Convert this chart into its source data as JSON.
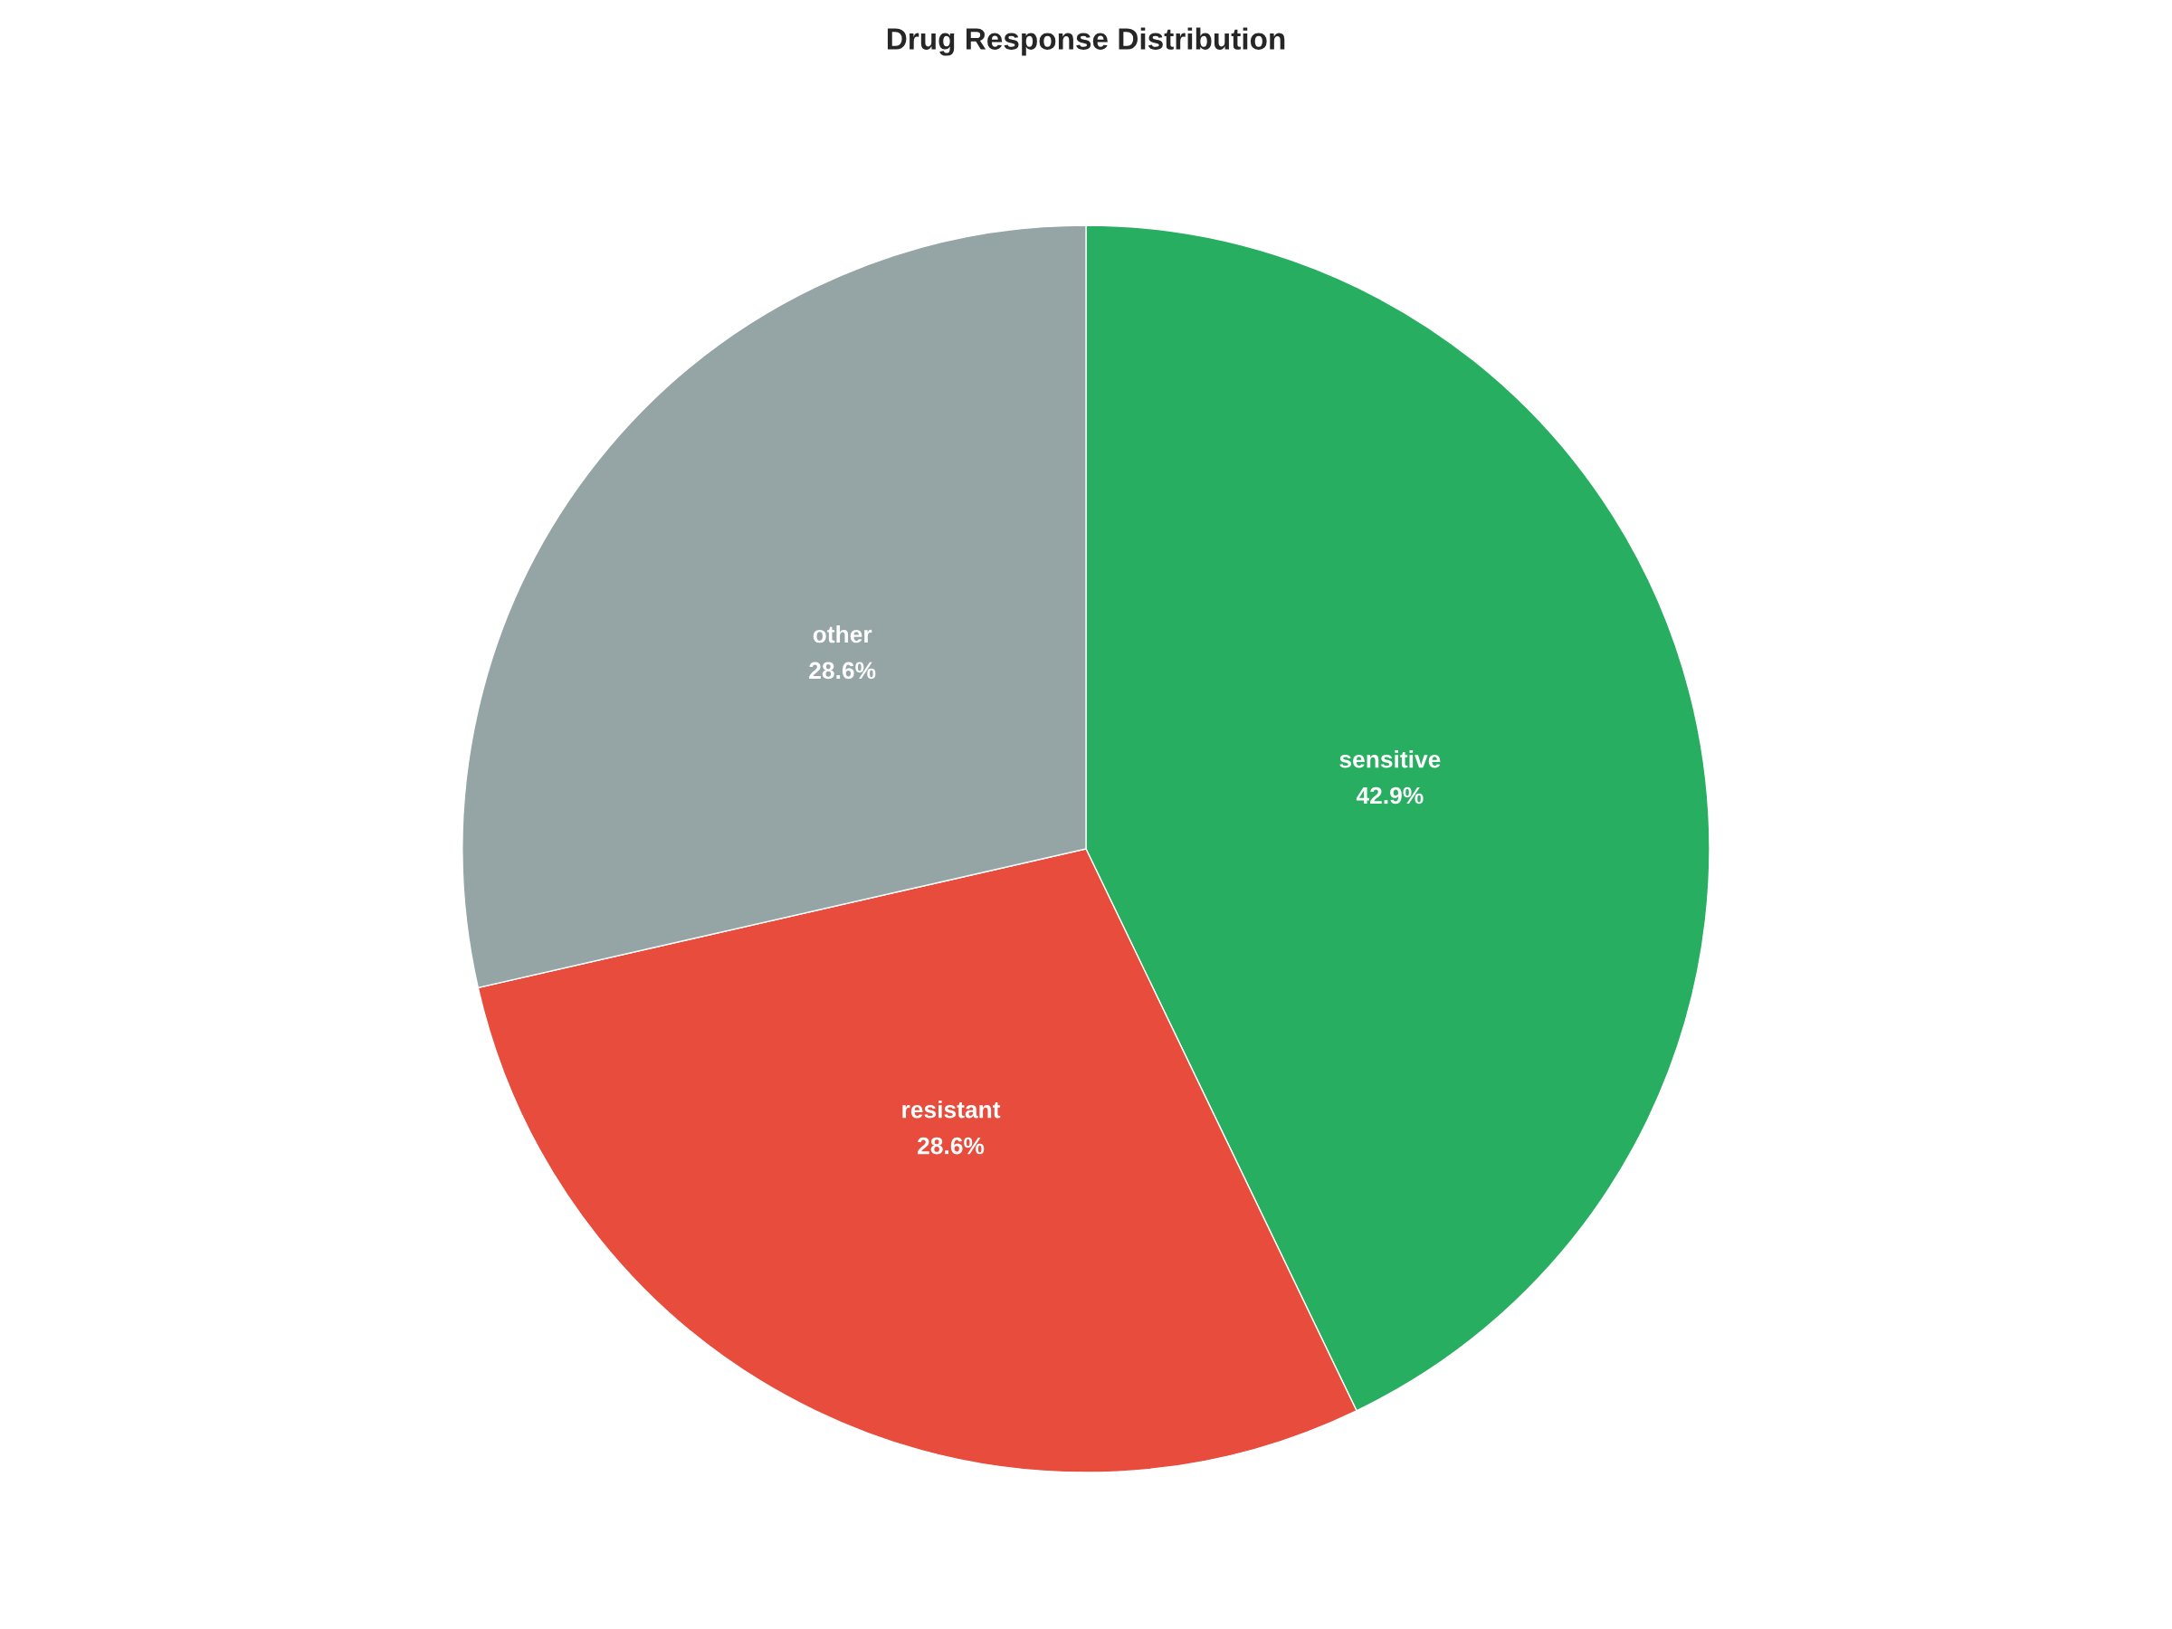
{
  "chart_data": {
    "type": "pie",
    "title": "Drug Response Distribution",
    "categories": [
      "sensitive",
      "resistant",
      "other"
    ],
    "values": [
      42.9,
      28.6,
      28.6
    ],
    "value_labels": [
      "42.9%",
      "28.6%",
      "28.6%"
    ],
    "colors": [
      "#27ae60",
      "#e74c3c",
      "#95a5a6"
    ]
  }
}
